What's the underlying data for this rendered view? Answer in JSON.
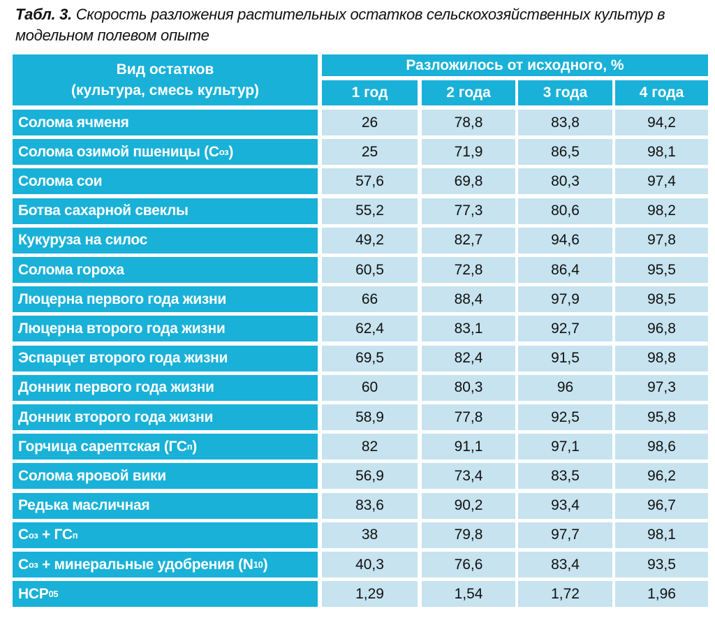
{
  "title": {
    "label": "Табл. 3.",
    "text": "Скорость разложения растительных остатков сельскохозяйственных культур в модельном полевом опыте"
  },
  "header": {
    "first_col_line1": "Вид остатков",
    "first_col_line2": "(культура, смесь культур)",
    "group": "Разложилось от исходного, %",
    "years": [
      "1 год",
      "2 года",
      "3 года",
      "4 года"
    ]
  },
  "rows": [
    {
      "name": "Солома ячменя",
      "values": [
        "26",
        "78,8",
        "83,8",
        "94,2"
      ]
    },
    {
      "name": "Солома озимой пшеницы (С",
      "sub": "оз",
      "tail": ")",
      "values": [
        "25",
        "71,9",
        "86,5",
        "98,1"
      ]
    },
    {
      "name": "Солома сои",
      "values": [
        "57,6",
        "69,8",
        "80,3",
        "97,4"
      ]
    },
    {
      "name": "Ботва сахарной свеклы",
      "values": [
        "55,2",
        "77,3",
        "80,6",
        "98,2"
      ]
    },
    {
      "name": "Кукуруза на силос",
      "values": [
        "49,2",
        "82,7",
        "94,6",
        "97,8"
      ]
    },
    {
      "name": "Солома гороха",
      "values": [
        "60,5",
        "72,8",
        "86,4",
        "95,5"
      ]
    },
    {
      "name": "Люцерна первого года жизни",
      "values": [
        "66",
        "88,4",
        "97,9",
        "98,5"
      ]
    },
    {
      "name": "Люцерна второго года жизни",
      "values": [
        "62,4",
        "83,1",
        "92,7",
        "96,8"
      ]
    },
    {
      "name": "Эспарцет второго года жизни",
      "values": [
        "69,5",
        "82,4",
        "91,5",
        "98,8"
      ]
    },
    {
      "name": "Донник первого года жизни",
      "values": [
        "60",
        "80,3",
        "96",
        "97,3"
      ]
    },
    {
      "name": "Донник второго года жизни",
      "values": [
        "58,9",
        "77,8",
        "92,5",
        "95,8"
      ]
    },
    {
      "name": "Горчица сарептская (ГС",
      "sub": "п",
      "tail": ")",
      "values": [
        "82",
        "91,1",
        "97,1",
        "98,6"
      ]
    },
    {
      "name": "Солома яровой вики",
      "values": [
        "56,9",
        "73,4",
        "83,5",
        "96,2"
      ]
    },
    {
      "name": "Редька масличная",
      "values": [
        "83,6",
        "90,2",
        "93,4",
        "96,7"
      ]
    },
    {
      "name": "С",
      "sub": "оз",
      "tail": " + ГС",
      "sub2": "п",
      "values": [
        "38",
        "79,8",
        "97,7",
        "98,1"
      ]
    },
    {
      "name": "С",
      "sub": "оз",
      "tail": " + минеральные удобрения (N",
      "sub2": "10",
      "tail2": ")",
      "values": [
        "40,3",
        "76,6",
        "83,4",
        "93,5"
      ]
    },
    {
      "name": "НСР",
      "sub": "05",
      "values": [
        "1,29",
        "1,54",
        "1,72",
        "1,96"
      ]
    }
  ],
  "colors": {
    "header": "#19b1d8",
    "cell": "#c6e3ef"
  }
}
